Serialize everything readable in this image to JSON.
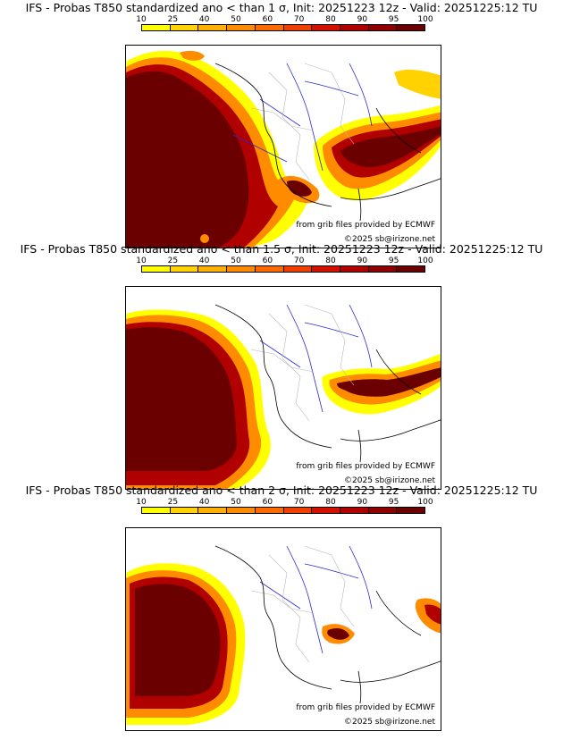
{
  "panels": [
    {
      "title": "IFS - Probas T850  standardized ano < than 1 σ, Init: 20251223 12z - Valid: 20251225:12 TU"
    },
    {
      "title": "IFS - Probas T850  standardized ano < than 1.5 σ, Init: 20251223 12z - Valid: 20251225:12 TU"
    },
    {
      "title": "IFS - Probas T850  standardized ano < than 2 σ, Init: 20251223 12z - Valid: 20251225:12 TU"
    }
  ],
  "scale": {
    "labels": [
      "10",
      "25",
      "40",
      "50",
      "60",
      "70",
      "80",
      "90",
      "95",
      "100"
    ],
    "colors": [
      "#ffff00",
      "#ffd200",
      "#ffb000",
      "#ff8c00",
      "#ff6a00",
      "#f04000",
      "#d41000",
      "#b00000",
      "#900000",
      "#6b0000"
    ]
  },
  "credits": {
    "source": "from grib files provided by ECMWF",
    "copyright": "©2025 sb@irizone.net"
  },
  "colors": {
    "deep": "#6b0000",
    "red": "#b00000",
    "orange": "#ff8c00",
    "yellow": "#ffff00",
    "coast": "#000000",
    "rivers": "#2a2ad0",
    "borders": "#b8b8b8"
  }
}
